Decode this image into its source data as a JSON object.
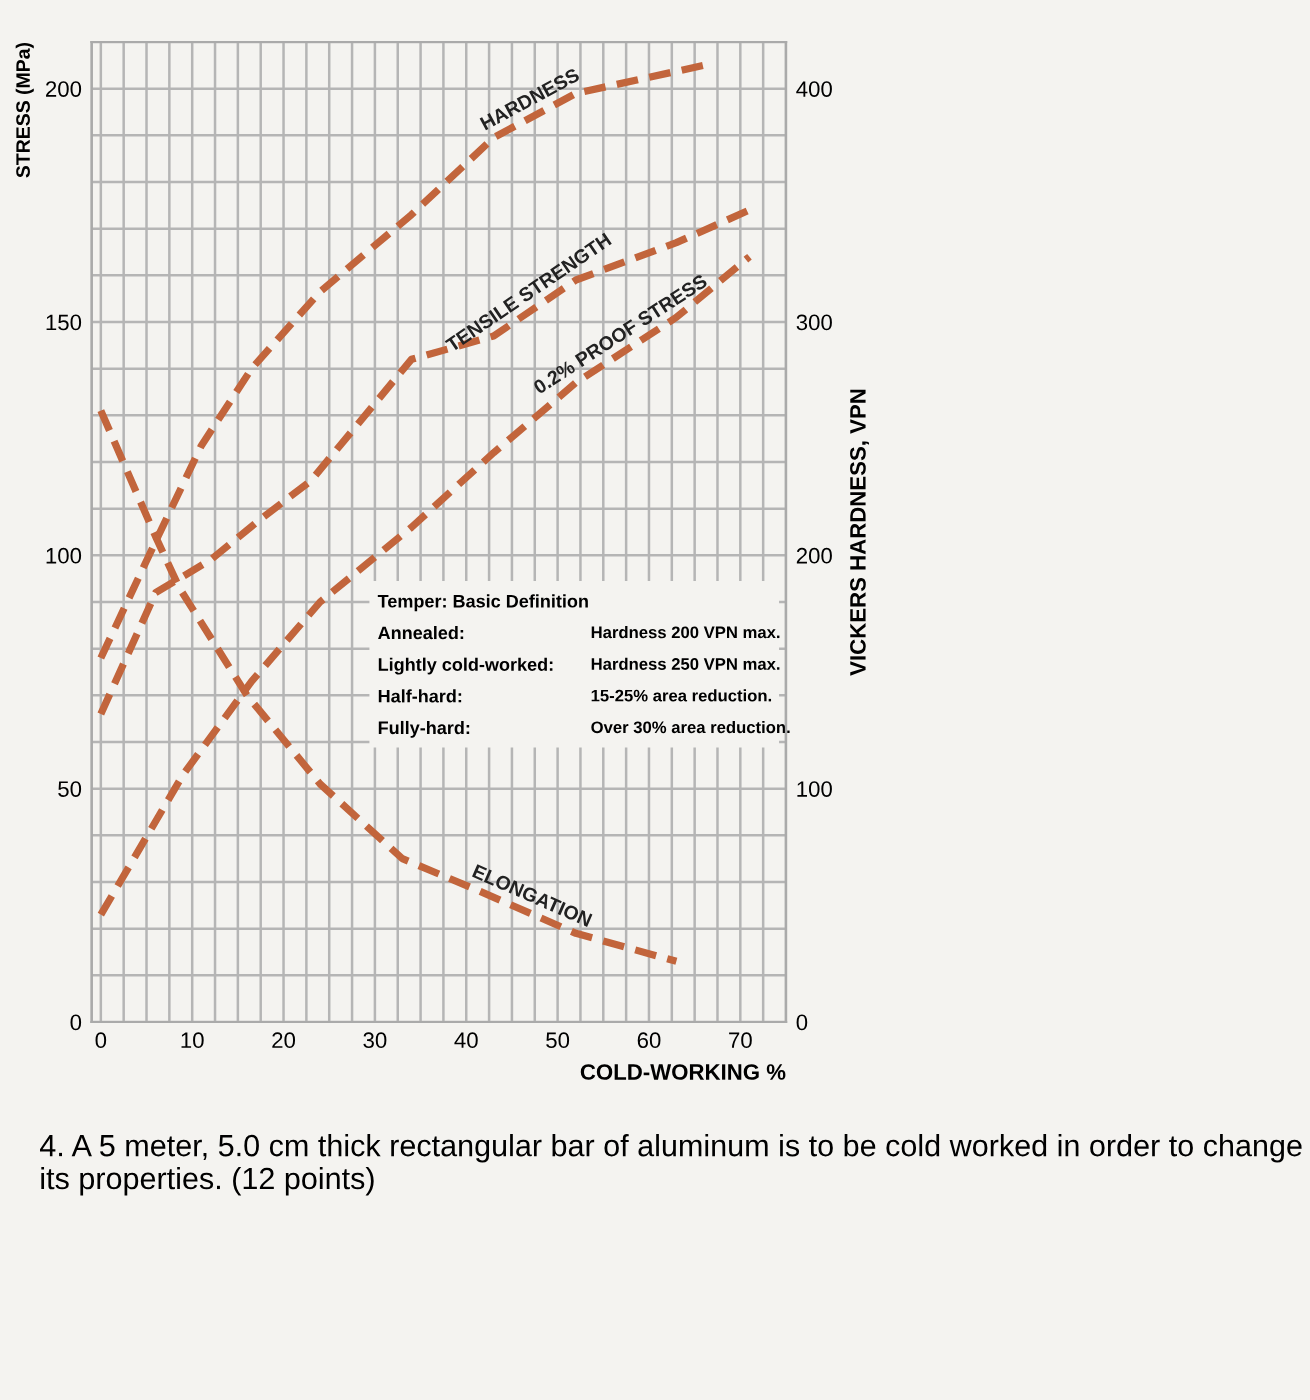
{
  "chart_data": {
    "type": "line",
    "xlabel": "COLD-WORKING %",
    "ylabel": "STRESS (MPa)",
    "y2label": "VICKERS HARDNESS, VPN",
    "xlim": [
      -1,
      75
    ],
    "ylim": [
      0,
      210
    ],
    "y2lim": [
      0,
      420
    ],
    "xticks": [
      0,
      {
        "value": 2.5,
        "label": null
      },
      {
        "value": 5,
        "label": null
      },
      {
        "value": 7.5,
        "label": null
      },
      10,
      {
        "value": 12.5,
        "label": null
      },
      {
        "value": 15,
        "label": null
      },
      {
        "value": 17.5,
        "label": null
      },
      20,
      {
        "value": 22.5,
        "label": null
      },
      {
        "value": 25,
        "label": null
      },
      {
        "value": 27.5,
        "label": null
      },
      30,
      {
        "value": 32.5,
        "label": null
      },
      {
        "value": 35,
        "label": null
      },
      {
        "value": 37.5,
        "label": null
      },
      40,
      {
        "value": 42.5,
        "label": null
      },
      {
        "value": 45,
        "label": null
      },
      {
        "value": 47.5,
        "label": null
      },
      50,
      {
        "value": 52.5,
        "label": null
      },
      {
        "value": 55,
        "label": null
      },
      {
        "value": 57.5,
        "label": null
      },
      60,
      {
        "value": 62.5,
        "label": null
      },
      {
        "value": 65,
        "label": null
      },
      {
        "value": 67.5,
        "label": null
      },
      70,
      {
        "value": 72.5,
        "label": null
      },
      {
        "value": 75,
        "label": null
      }
    ],
    "yticks": [
      0,
      {
        "value": 10,
        "label": null
      },
      {
        "value": 20,
        "label": null
      },
      {
        "value": 30,
        "label": null
      },
      {
        "value": 40,
        "label": null
      },
      50,
      {
        "value": 60,
        "label": null
      },
      {
        "value": 70,
        "label": null
      },
      {
        "value": 80,
        "label": null
      },
      {
        "value": 90,
        "label": null
      },
      100,
      {
        "value": 110,
        "label": null
      },
      {
        "value": 120,
        "label": null
      },
      {
        "value": 130,
        "label": null
      },
      {
        "value": 140,
        "label": null
      },
      150,
      {
        "value": 160,
        "label": null
      },
      {
        "value": 170,
        "label": null
      },
      {
        "value": 180,
        "label": null
      },
      {
        "value": 190,
        "label": null
      },
      200,
      {
        "value": 210,
        "label": null
      }
    ],
    "y2ticks": [
      0,
      100,
      200,
      300,
      400
    ],
    "grid": true,
    "marker": "none",
    "line_style": "dashed",
    "series": [
      {
        "name": "HARDNESS",
        "axis": "y2",
        "color": "#c2653c",
        "x": [
          0,
          6,
          11,
          16.5,
          24,
          34,
          43,
          52,
          66
        ],
        "values": [
          156,
          206,
          247,
          280,
          313,
          346,
          379,
          398,
          410
        ]
      },
      {
        "name": "TENSILE STRENGTH",
        "color": "#c2653c",
        "x": [
          0,
          6,
          12,
          17,
          23,
          34,
          43,
          52,
          63,
          71
        ],
        "values": [
          66,
          92,
          99,
          107,
          116,
          142,
          147,
          159,
          167,
          174
        ]
      },
      {
        "name": "0.2% PROOF STRESS",
        "color": "#c2653c",
        "x": [
          0,
          9,
          16.5,
          24,
          34,
          43,
          52,
          63,
          71
        ],
        "values": [
          23,
          53,
          73,
          90,
          106,
          122,
          137,
          151,
          164
        ]
      },
      {
        "name": "ELONGATION",
        "color": "#c2653c",
        "x": [
          0,
          6,
          8.6,
          16,
          24,
          33,
          41.5,
          52,
          63
        ],
        "values": [
          131,
          104,
          93,
          70,
          51,
          35,
          28,
          19,
          13
        ]
      }
    ],
    "annotations": [
      "Temper: Basic Definition",
      "Annealed:",
      "Hardness 200 VPN max.",
      "Lightly cold-worked:",
      "Hardness 250 VPN max.",
      "Half-hard:",
      "15-25% area reduction.",
      "Fully-hard:",
      "Over 30% area reduction.",
      "4. A 5 meter, 5.0 cm thick rectangular bar of aluminum is to be cold worked in order to change its properties. (12 points)"
    ]
  }
}
